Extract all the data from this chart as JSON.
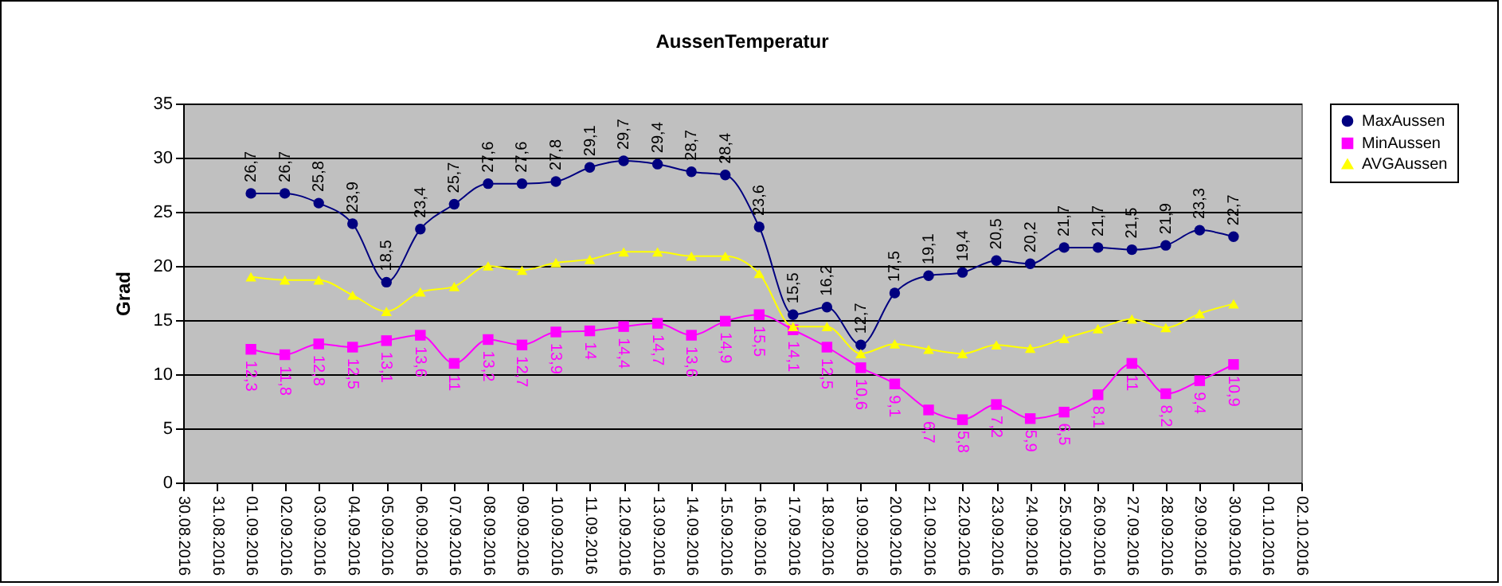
{
  "chart_data": {
    "type": "line",
    "title": "AussenTemperatur",
    "ylabel": "Grad",
    "x": [
      "2016-09-01",
      "2016-09-02",
      "2016-09-03",
      "2016-09-04",
      "2016-09-05",
      "2016-09-06",
      "2016-09-07",
      "2016-09-08",
      "2016-09-09",
      "2016-09-10",
      "2016-09-11",
      "2016-09-12",
      "2016-09-13",
      "2016-09-14",
      "2016-09-15",
      "2016-09-16",
      "2016-09-17",
      "2016-09-18",
      "2016-09-19",
      "2016-09-20",
      "2016-09-21",
      "2016-09-22",
      "2016-09-23",
      "2016-09-24",
      "2016-09-25",
      "2016-09-26",
      "2016-09-27",
      "2016-09-28",
      "2016-09-29",
      "2016-09-30"
    ],
    "series": [
      {
        "name": "MaxAussen",
        "color": "#000080",
        "marker": "circle",
        "values": [
          26.7,
          26.7,
          25.8,
          23.9,
          18.5,
          23.4,
          25.7,
          27.6,
          27.6,
          27.8,
          29.1,
          29.7,
          29.4,
          28.7,
          28.4,
          23.6,
          15.5,
          16.2,
          12.7,
          17.5,
          19.1,
          19.4,
          20.5,
          20.2,
          21.7,
          21.7,
          21.5,
          21.9,
          23.3,
          22.7
        ],
        "value_labels": [
          "26,7",
          "26,7",
          "25,8",
          "23,9",
          "18,5",
          "23,4",
          "25,7",
          "27,6",
          "27,6",
          "27,8",
          "29,1",
          "29,7",
          "29,4",
          "28,7",
          "28,4",
          "23,6",
          "15,5",
          "16,2",
          "12,7",
          "17,5",
          "19,1",
          "19,4",
          "20,5",
          "20,2",
          "21,7",
          "21,7",
          "21,5",
          "21,9",
          "23,3",
          "22,7"
        ]
      },
      {
        "name": "MinAussen",
        "color": "#ff00ff",
        "marker": "square",
        "values": [
          12.3,
          11.8,
          12.8,
          12.5,
          13.1,
          13.6,
          11,
          13.2,
          12.7,
          13.9,
          14,
          14.4,
          14.7,
          13.6,
          14.9,
          15.5,
          14.1,
          12.5,
          10.6,
          9.1,
          6.7,
          5.8,
          7.2,
          5.9,
          6.5,
          8.1,
          11,
          8.2,
          9.4,
          10.9
        ],
        "value_labels": [
          "12,3",
          "11,8",
          "12,8",
          "12,5",
          "13,1",
          "13,6",
          "11",
          "13,2",
          "12,7",
          "13,9",
          "14",
          "14,4",
          "14,7",
          "13,6",
          "14,9",
          "15,5",
          "14,1",
          "12,5",
          "10,6",
          "9,1",
          "6,7",
          "5,8",
          "7,2",
          "5,9",
          "6,5",
          "8,1",
          "11",
          "8,2",
          "9,4",
          "10,9"
        ]
      },
      {
        "name": "AVGAussen",
        "color": "#ffff00",
        "marker": "triangle",
        "values": [
          19.0,
          18.7,
          18.7,
          17.3,
          15.8,
          17.6,
          18.1,
          20.0,
          19.6,
          20.3,
          20.6,
          21.3,
          21.3,
          20.9,
          20.9,
          19.3,
          14.4,
          14.4,
          11.9,
          12.8,
          12.3,
          11.9,
          12.7,
          12.4,
          13.3,
          14.2,
          15.1,
          14.3,
          15.6,
          16.5
        ]
      }
    ],
    "xlim": [
      "2016-08-30",
      "2016-10-02"
    ],
    "xticks": [
      {
        "value": "2016-08-30",
        "label": "30.08.2016"
      },
      {
        "value": "2016-08-31",
        "label": "31.08.2016"
      },
      {
        "value": "2016-09-01",
        "label": "01.09.2016"
      },
      {
        "value": "2016-09-02",
        "label": "02.09.2016"
      },
      {
        "value": "2016-09-03",
        "label": "03.09.2016"
      },
      {
        "value": "2016-09-04",
        "label": "04.09.2016"
      },
      {
        "value": "2016-09-05",
        "label": "05.09.2016"
      },
      {
        "value": "2016-09-06",
        "label": "06.09.2016"
      },
      {
        "value": "2016-09-07",
        "label": "07.09.2016"
      },
      {
        "value": "2016-09-08",
        "label": "08.09.2016"
      },
      {
        "value": "2016-09-09",
        "label": "09.09.2016"
      },
      {
        "value": "2016-09-10",
        "label": "10.09.2016"
      },
      {
        "value": "2016-09-11",
        "label": "11.09.2016"
      },
      {
        "value": "2016-09-12",
        "label": "12.09.2016"
      },
      {
        "value": "2016-09-13",
        "label": "13.09.2016"
      },
      {
        "value": "2016-09-14",
        "label": "14.09.2016"
      },
      {
        "value": "2016-09-15",
        "label": "15.09.2016"
      },
      {
        "value": "2016-09-16",
        "label": "16.09.2016"
      },
      {
        "value": "2016-09-17",
        "label": "17.09.2016"
      },
      {
        "value": "2016-09-18",
        "label": "18.09.2016"
      },
      {
        "value": "2016-09-19",
        "label": "19.09.2016"
      },
      {
        "value": "2016-09-20",
        "label": "20.09.2016"
      },
      {
        "value": "2016-09-21",
        "label": "21.09.2016"
      },
      {
        "value": "2016-09-22",
        "label": "22.09.2016"
      },
      {
        "value": "2016-09-23",
        "label": "23.09.2016"
      },
      {
        "value": "2016-09-24",
        "label": "24.09.2016"
      },
      {
        "value": "2016-09-25",
        "label": "25.09.2016"
      },
      {
        "value": "2016-09-26",
        "label": "26.09.2016"
      },
      {
        "value": "2016-09-27",
        "label": "27.09.2016"
      },
      {
        "value": "2016-09-28",
        "label": "28.09.2016"
      },
      {
        "value": "2016-09-29",
        "label": "29.09.2016"
      },
      {
        "value": "2016-09-30",
        "label": "30.09.2016"
      },
      {
        "value": "2016-10-01",
        "label": "01.10.2016"
      },
      {
        "value": "2016-10-02",
        "label": "02.10.2016"
      }
    ],
    "ylim": [
      0,
      35
    ],
    "yticks": [
      0,
      5,
      10,
      15,
      20,
      25,
      30,
      35
    ],
    "grid": "y",
    "legend": "right"
  }
}
